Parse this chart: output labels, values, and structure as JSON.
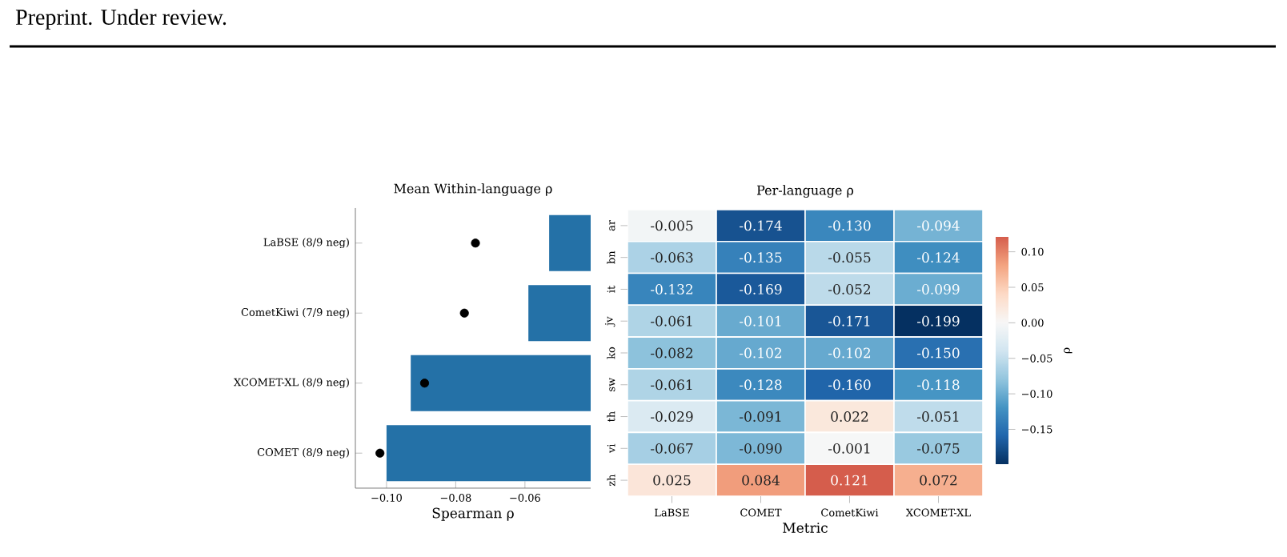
{
  "chart_data": [
    {
      "type": "bar",
      "orientation": "horizontal",
      "title": "Mean Within-language ρ",
      "xlabel": "Spearman ρ",
      "annotations": [
        "Preprint. Under review."
      ],
      "categories": [
        "LaBSE (8/9 neg)",
        "CometKiwi (7/9 neg)",
        "XCOMET-XL (8/9 neg)",
        "COMET (8/9 neg)"
      ],
      "series": [
        {
          "type": "bar",
          "color": "#2471a7",
          "values": [
            -0.053,
            -0.059,
            -0.093,
            -0.1
          ]
        },
        {
          "type": "scatter",
          "color": "#000000",
          "marker": "circle",
          "values": [
            -0.0743,
            -0.0775,
            -0.089,
            -0.1019
          ]
        }
      ],
      "xlim": [
        -0.109,
        -0.041
      ],
      "xticks": [
        {
          "value": -0.1,
          "label": "−0.10"
        },
        {
          "value": -0.08,
          "label": "−0.08"
        },
        {
          "value": -0.06,
          "label": "−0.06"
        }
      ]
    },
    {
      "type": "heatmap",
      "title": "Per-language ρ",
      "xlabel": "Metric",
      "clabel": "ρ",
      "categories": [
        "LaBSE",
        "COMET",
        "CometKiwi",
        "XCOMET-XL"
      ],
      "y_categories": [
        "ar",
        "bn",
        "it",
        "jv",
        "ko",
        "sw",
        "th",
        "vi",
        "zh"
      ],
      "cells": [
        [
          -0.005,
          -0.174,
          -0.13,
          -0.094
        ],
        [
          -0.063,
          -0.135,
          -0.055,
          -0.124
        ],
        [
          -0.132,
          -0.169,
          -0.052,
          -0.099
        ],
        [
          -0.061,
          -0.101,
          -0.171,
          -0.199
        ],
        [
          -0.082,
          -0.102,
          -0.102,
          -0.15
        ],
        [
          -0.061,
          -0.128,
          -0.16,
          -0.118
        ],
        [
          -0.029,
          -0.091,
          0.022,
          -0.051
        ],
        [
          -0.067,
          -0.09,
          -0.001,
          -0.075
        ],
        [
          0.025,
          0.084,
          0.121,
          0.072
        ]
      ],
      "cell_labels": [
        [
          "-0.005",
          "-0.174",
          "-0.130",
          "-0.094"
        ],
        [
          "-0.063",
          "-0.135",
          "-0.055",
          "-0.124"
        ],
        [
          "-0.132",
          "-0.169",
          "-0.052",
          "-0.099"
        ],
        [
          "-0.061",
          "-0.101",
          "-0.171",
          "-0.199"
        ],
        [
          "-0.082",
          "-0.102",
          "-0.102",
          "-0.150"
        ],
        [
          "-0.061",
          "-0.128",
          "-0.160",
          "-0.118"
        ],
        [
          "-0.029",
          "-0.091",
          "0.022",
          "-0.051"
        ],
        [
          "-0.067",
          "-0.090",
          "-0.001",
          "-0.075"
        ],
        [
          "0.025",
          "0.084",
          "0.121",
          "0.072"
        ]
      ],
      "clim": [
        -0.199,
        0.121
      ],
      "cticks": [
        {
          "value": 0.1,
          "label": "0.10"
        },
        {
          "value": 0.05,
          "label": "0.05"
        },
        {
          "value": 0.0,
          "label": "0.00"
        },
        {
          "value": -0.05,
          "label": "−0.05"
        },
        {
          "value": -0.1,
          "label": "−0.10"
        },
        {
          "value": -0.15,
          "label": "−0.15"
        }
      ]
    }
  ]
}
